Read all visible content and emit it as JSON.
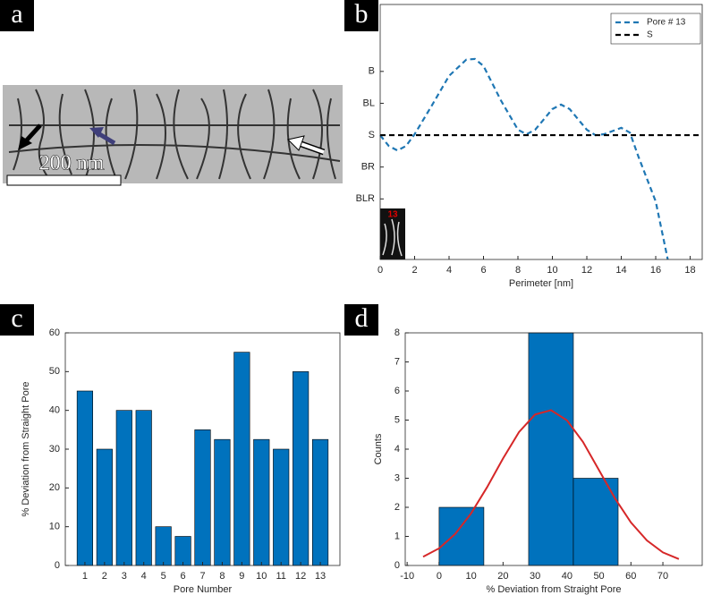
{
  "panels": [
    "a",
    "b",
    "c",
    "d"
  ],
  "micrograph": {
    "scale_label": "200 nm"
  },
  "chart_data": [
    {
      "type": "line",
      "xlabel": "Perimeter [nm]",
      "inset_label": "13",
      "xlim": [
        0,
        18.7
      ],
      "xticks": [
        0,
        2,
        4,
        6,
        8,
        10,
        12,
        14,
        16,
        18
      ],
      "ylim": [
        -3.9,
        4.1
      ],
      "yticks": [
        {
          "value": -2,
          "label": "BLR"
        },
        {
          "value": -1,
          "label": "BR"
        },
        {
          "value": 0,
          "label": "S"
        },
        {
          "value": 1,
          "label": "BL"
        },
        {
          "value": 2,
          "label": "B"
        }
      ],
      "legend": "upper right",
      "series": [
        {
          "name": "Pore # 13",
          "color": "#1f77b4",
          "dashed": true,
          "x": [
            0,
            0.5,
            1,
            1.5,
            2,
            3,
            4,
            5,
            5.5,
            6,
            7,
            8,
            8.5,
            9,
            10,
            10.5,
            11,
            12,
            12.5,
            13,
            14,
            14.5,
            15,
            16,
            16.7
          ],
          "values": [
            0,
            -0.34,
            -0.48,
            -0.34,
            0.03,
            0.93,
            1.86,
            2.37,
            2.39,
            2.17,
            1.1,
            0.17,
            0.03,
            0.17,
            0.82,
            0.96,
            0.82,
            0.17,
            0,
            0.03,
            0.23,
            0.08,
            -0.68,
            -2.08,
            -3.9
          ]
        },
        {
          "name": "S",
          "color": "#000000",
          "dashed": true,
          "x": [
            0,
            18.7
          ],
          "values": [
            0,
            0
          ]
        }
      ]
    },
    {
      "type": "bar",
      "xlabel": "Pore Number",
      "ylabel": "% Deviation from Straight Pore",
      "color": "#0072bd",
      "categories": [
        "1",
        "2",
        "3",
        "4",
        "5",
        "6",
        "7",
        "8",
        "9",
        "10",
        "11",
        "12",
        "13"
      ],
      "values": [
        45,
        30,
        40,
        40,
        10,
        7.5,
        35,
        32.5,
        55,
        32.5,
        30,
        50,
        32.5
      ],
      "ylim": [
        0,
        60
      ],
      "yticks": [
        0,
        10,
        20,
        30,
        40,
        50,
        60
      ]
    },
    {
      "type": "histogram",
      "xlabel": "% Deviation from Straight Pore",
      "ylabel": "Counts",
      "color": "#0072bd",
      "bins": [
        0,
        14,
        28,
        42,
        56
      ],
      "counts": [
        2,
        0,
        8,
        3
      ],
      "xlim": [
        -10.6,
        82.3
      ],
      "xticks": [
        -10,
        0,
        10,
        20,
        30,
        40,
        50,
        60,
        70
      ],
      "ylim": [
        0,
        8
      ],
      "yticks": [
        0,
        1,
        2,
        3,
        4,
        5,
        6,
        7,
        8
      ],
      "curve": {
        "color": "#d62728",
        "x": [
          -5,
          0,
          5,
          10,
          15,
          20,
          25,
          30,
          35,
          40,
          45,
          50,
          55,
          60,
          65,
          70,
          75
        ],
        "values": [
          0.3,
          0.59,
          1.08,
          1.79,
          2.69,
          3.68,
          4.59,
          5.19,
          5.34,
          4.99,
          4.25,
          3.28,
          2.31,
          1.48,
          0.86,
          0.45,
          0.22
        ]
      }
    }
  ]
}
